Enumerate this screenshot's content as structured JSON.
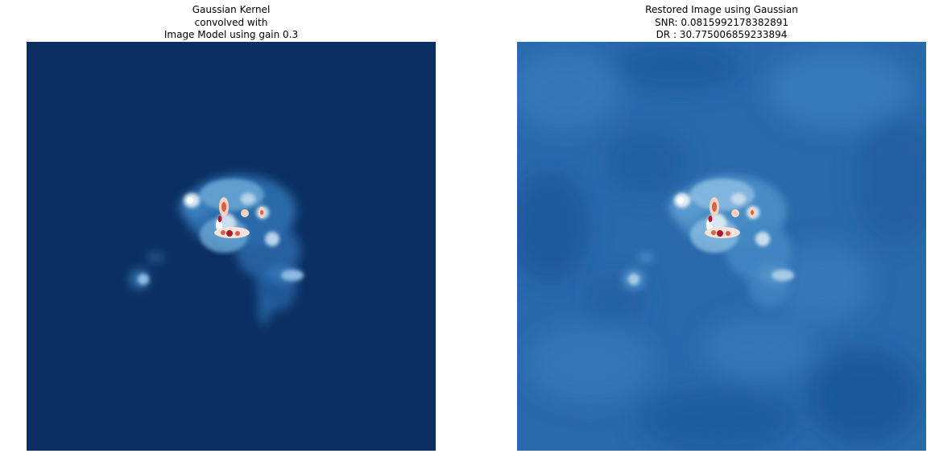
{
  "figure": {
    "panels": [
      {
        "title_lines": [
          "Gaussian Kernel",
          "convolved with",
          "Image Model using gain 0.3"
        ],
        "image_description_icon": "galaxy-emission-map",
        "colormap": "RdBu_r",
        "background_color": "#0b2f62"
      },
      {
        "title_lines": [
          "Restored Image using Gaussian",
          "SNR: 0.0815992178382891",
          "DR : 30.775006859233894"
        ],
        "image_description_icon": "restored-emission-map",
        "colormap": "RdBu_r",
        "background_color": "#2a6aad"
      }
    ]
  }
}
